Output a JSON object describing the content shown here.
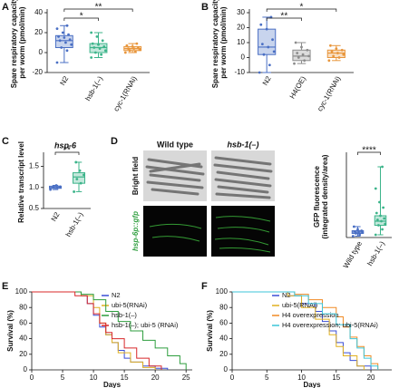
{
  "chart_data": [
    {
      "type": "box",
      "panel": "A",
      "ylabel": [
        "Spare respiratory capacity",
        "per worm (pmol/min)"
      ],
      "categories": [
        "N2",
        "hsb-1(–)",
        "cyc-1(RNAi)"
      ],
      "colors": [
        "#4a6fc4",
        "#3cb48a",
        "#e8963c"
      ],
      "boxes": [
        {
          "min": -10,
          "q1": 5,
          "median": 12,
          "q3": 17,
          "max": 27,
          "points": [
            -10,
            2,
            5,
            8,
            10,
            12,
            13,
            15,
            16,
            18,
            20,
            24,
            27
          ]
        },
        {
          "min": -5,
          "q1": 0,
          "median": 5,
          "q3": 9,
          "max": 20,
          "points": [
            -5,
            -2,
            0,
            2,
            4,
            5,
            6,
            8,
            9,
            12,
            16,
            20
          ]
        },
        {
          "min": 0,
          "q1": 2,
          "median": 4,
          "q3": 6,
          "max": 9,
          "points": [
            0,
            1,
            2,
            3,
            4,
            4,
            5,
            6,
            7,
            9
          ]
        }
      ],
      "significance": [
        {
          "text": "*",
          "between": [
            "N2",
            "hsb-1(–)"
          ]
        },
        {
          "text": "**",
          "between": [
            "N2",
            "cyc-1(RNAi)"
          ]
        }
      ],
      "ylim": [
        -20,
        40
      ],
      "yticks": [
        -20,
        0,
        20,
        40
      ]
    },
    {
      "type": "box",
      "panel": "B",
      "ylabel": [
        "Spare respiratory capacity",
        "per worm (pmol/min)"
      ],
      "categories": [
        "N2",
        "H4(OE)",
        "cyc-1(RNAi)"
      ],
      "colors": [
        "#4a6fc4",
        "#8c8c8c",
        "#e8963c"
      ],
      "boxes": [
        {
          "min": -10,
          "q1": 2,
          "median": 7,
          "q3": 19,
          "max": 27,
          "points": [
            -10,
            -5,
            2,
            4,
            7,
            9,
            12,
            19,
            22,
            27
          ]
        },
        {
          "min": -4,
          "q1": -2,
          "median": 1,
          "q3": 5,
          "max": 10,
          "points": [
            -4,
            -2,
            0,
            1,
            2,
            3,
            5,
            7,
            10
          ]
        },
        {
          "min": -2,
          "q1": 0,
          "median": 3,
          "q3": 5,
          "max": 8,
          "points": [
            -2,
            0,
            1,
            2,
            3,
            4,
            5,
            6,
            8
          ]
        }
      ],
      "significance": [
        {
          "text": "**",
          "between": [
            "N2",
            "H4(OE)"
          ]
        },
        {
          "text": "*",
          "between": [
            "N2",
            "cyc-1(RNAi)"
          ]
        }
      ],
      "ylim": [
        -10,
        30
      ],
      "yticks": [
        -10,
        0,
        10,
        20,
        30
      ]
    },
    {
      "type": "box",
      "panel": "C",
      "title": "hsp-6",
      "ylabel": [
        "Relative transcript level"
      ],
      "categories": [
        "N2",
        "hsb-1(–)"
      ],
      "colors": [
        "#4a6fc4",
        "#3cb48a"
      ],
      "boxes": [
        {
          "min": 0.95,
          "q1": 0.98,
          "median": 1.0,
          "q3": 1.03,
          "max": 1.05,
          "points": [
            0.95,
            0.99,
            1.0,
            1.02,
            1.05
          ]
        },
        {
          "min": 0.9,
          "q1": 1.1,
          "median": 1.25,
          "q3": 1.35,
          "max": 1.6,
          "points": [
            0.9,
            1.1,
            1.2,
            1.3,
            1.4,
            1.6
          ]
        }
      ],
      "significance": [
        {
          "text": "**",
          "between": [
            "N2",
            "hsb-1(–)"
          ]
        }
      ],
      "ylim": [
        0.5,
        1.75
      ],
      "yticks": [
        0.5,
        {
          "value": 1,
          "label": "1.0"
        },
        1.5
      ]
    },
    {
      "type": "box",
      "panel": "D",
      "image_titles": [
        "Wild type",
        "hsb-1(–)"
      ],
      "image_rows": [
        "Bright field",
        "hsp-6p::gfp"
      ],
      "ylabel": [
        "GFP fluorescence",
        "(integrated density/area)"
      ],
      "categories": [
        "Wild type",
        "hsb-1(–)"
      ],
      "colors": [
        "#4a6fc4",
        "#3cb48a"
      ],
      "boxes": [
        {
          "min": 0.5,
          "q1": 1.5,
          "median": 2,
          "q3": 2.5,
          "max": 4,
          "points": [
            0.5,
            1,
            1.5,
            1.8,
            2,
            2.2,
            2.5,
            3,
            4
          ]
        },
        {
          "min": 1,
          "q1": 4.5,
          "median": 6,
          "q3": 8,
          "max": 26,
          "points": [
            1,
            3,
            4.5,
            5,
            6,
            6.5,
            7,
            8,
            9,
            11,
            13,
            18,
            26
          ]
        }
      ],
      "significance": [
        {
          "text": "****",
          "between": [
            "Wild type",
            "hsb-1(–)"
          ]
        }
      ],
      "ylim": [
        0,
        30
      ],
      "yticks": []
    },
    {
      "type": "survival",
      "panel": "E",
      "ylabel": "Survival (%)",
      "xlabel": "Days",
      "xlim": [
        0,
        26
      ],
      "xticks": [
        0,
        5,
        10,
        15,
        20,
        25
      ],
      "ylim": [
        0,
        100
      ],
      "yticks": [
        0,
        20,
        40,
        60,
        80,
        100
      ],
      "series": [
        {
          "name": "N2",
          "color": "#3b4fd6",
          "x": [
            0,
            8,
            9,
            10,
            11,
            12,
            13,
            14,
            15,
            16,
            18,
            20,
            22
          ],
          "values": [
            100,
            95,
            85,
            70,
            55,
            45,
            35,
            25,
            15,
            10,
            5,
            2,
            0
          ]
        },
        {
          "name": "ubi-5(RNAi)",
          "color": "#e0b020",
          "x": [
            0,
            8,
            10,
            11,
            12,
            13,
            14,
            16,
            18,
            20
          ],
          "values": [
            100,
            95,
            80,
            60,
            45,
            35,
            22,
            10,
            3,
            0
          ]
        },
        {
          "name": "hsb-1(–)",
          "color": "#2e9e3e",
          "x": [
            0,
            8,
            10,
            12,
            14,
            16,
            18,
            20,
            22,
            24,
            25
          ],
          "values": [
            100,
            97,
            90,
            75,
            62,
            50,
            38,
            28,
            18,
            8,
            0
          ]
        },
        {
          "name": "hsb-1(–); ubi-5 (RNAi)",
          "color": "#d8282a",
          "x": [
            0,
            7,
            9,
            10,
            11,
            12,
            13,
            15,
            17,
            19,
            21
          ],
          "values": [
            100,
            95,
            85,
            72,
            60,
            48,
            40,
            28,
            15,
            5,
            0
          ]
        }
      ]
    },
    {
      "type": "survival",
      "panel": "F",
      "ylabel": "Survival (%)",
      "xlabel": "Days",
      "xlim": [
        0,
        23
      ],
      "xticks": [
        0,
        5,
        10,
        15,
        20
      ],
      "ylim": [
        0,
        100
      ],
      "yticks": [
        0,
        20,
        40,
        60,
        80,
        100
      ],
      "series": [
        {
          "name": "N2",
          "color": "#3b4fd6",
          "x": [
            0,
            8,
            10,
            12,
            13,
            14,
            15,
            16,
            17,
            18,
            20
          ],
          "values": [
            100,
            95,
            85,
            75,
            62,
            50,
            35,
            22,
            12,
            5,
            0
          ]
        },
        {
          "name": "ubi-5(RNAi)",
          "color": "#e0b020",
          "x": [
            0,
            8,
            10,
            12,
            14,
            15,
            16,
            18,
            19
          ],
          "values": [
            100,
            95,
            80,
            65,
            45,
            30,
            18,
            5,
            0
          ]
        },
        {
          "name": "H4 overexpression",
          "color": "#f08a24",
          "x": [
            0,
            9,
            11,
            13,
            15,
            16,
            17,
            18,
            19,
            20,
            21
          ],
          "values": [
            100,
            97,
            90,
            80,
            68,
            55,
            42,
            30,
            18,
            8,
            0
          ]
        },
        {
          "name": "H4 overexpression; ubi-5(RNAi)",
          "color": "#3cc6d8",
          "x": [
            0,
            9,
            11,
            13,
            15,
            17,
            18,
            19,
            20,
            21
          ],
          "values": [
            100,
            95,
            85,
            72,
            58,
            40,
            28,
            15,
            5,
            0
          ]
        }
      ]
    }
  ]
}
